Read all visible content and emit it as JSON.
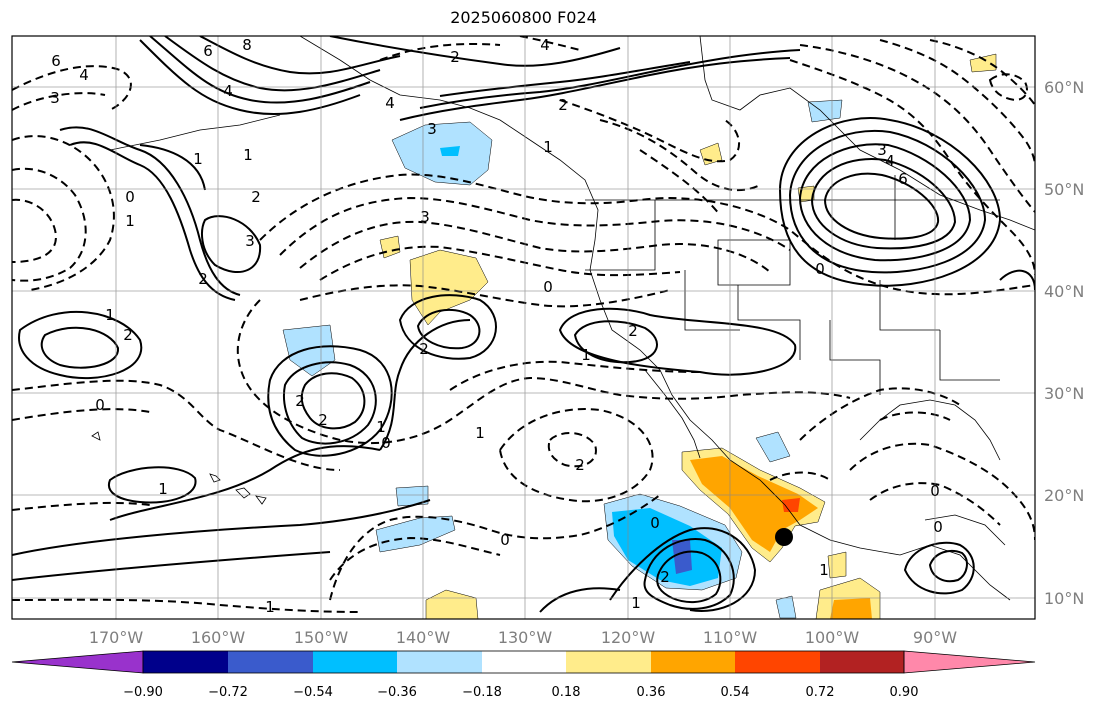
{
  "title": "2025060800 F024",
  "map": {
    "lon_range": [
      -180,
      -80
    ],
    "lat_range": [
      8,
      65
    ],
    "lon_ticks": [
      "170°W",
      "160°W",
      "150°W",
      "140°W",
      "130°W",
      "120°W",
      "110°W",
      "100°W",
      "90°W"
    ],
    "lat_ticks": [
      "60°N",
      "50°N",
      "40°N",
      "30°N",
      "20°N",
      "10°N"
    ],
    "grid": true,
    "marker": {
      "lon": -104.5,
      "lat": 16.2,
      "color": "#000000"
    },
    "contour_labels": [
      "6",
      "4",
      "8",
      "6",
      "4",
      "2",
      "4",
      "2",
      "3",
      "3",
      "1",
      "2",
      "3",
      "1",
      "2",
      "4",
      "6",
      "3",
      "4",
      "1",
      "0",
      "1",
      "3",
      "0",
      "1",
      "2",
      "2",
      "2",
      "1",
      "0",
      "1",
      "2",
      "2",
      "0",
      "1",
      "2",
      "0",
      "1",
      "0",
      "2",
      "1",
      "0",
      "0",
      "0",
      "1",
      "1"
    ]
  },
  "colorbar": {
    "ticks": [
      "−0.90",
      "−0.72",
      "−0.54",
      "−0.36",
      "−0.18",
      "0.18",
      "0.36",
      "0.54",
      "0.72",
      "0.90"
    ],
    "colors": [
      "#9932cc",
      "#00008b",
      "#3a5bcc",
      "#00bfff",
      "#b0e2ff",
      "#ffffff",
      "#ffec8b",
      "#ffa500",
      "#ff4500",
      "#b22222",
      "#ff88aa"
    ]
  }
}
